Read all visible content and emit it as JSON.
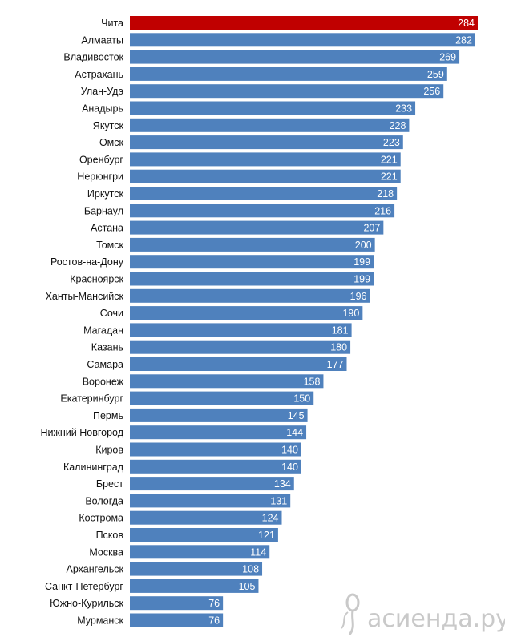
{
  "chart_data": {
    "type": "bar",
    "orientation": "horizontal",
    "title": "",
    "xlabel": "",
    "ylabel": "",
    "xlim": [
      0,
      300
    ],
    "grid": false,
    "legend": "none",
    "bar_color": "#4f81bd",
    "highlight_color": "#c00000",
    "highlight_index": 0,
    "categories": [
      "Чита",
      "Алмааты",
      "Владивосток",
      "Астрахань",
      "Улан-Удэ",
      "Анадырь",
      "Якутск",
      "Омск",
      "Оренбург",
      "Нерюнгри",
      "Иркутск",
      "Барнаул",
      "Астана",
      "Томск",
      "Ростов-на-Дону",
      "Красноярск",
      "Ханты-Мансийск",
      "Сочи",
      "Магадан",
      "Казань",
      "Самара",
      "Воронеж",
      "Екатеринбург",
      "Пермь",
      "Нижний Новгород",
      "Киров",
      "Калининград",
      "Брест",
      "Вологда",
      "Кострома",
      "Псков",
      "Москва",
      "Архангельск",
      "Санкт-Петербург",
      "Южно-Курильск",
      "Мурманск"
    ],
    "values": [
      284,
      282,
      269,
      259,
      256,
      233,
      228,
      223,
      221,
      221,
      218,
      216,
      207,
      200,
      199,
      199,
      196,
      190,
      181,
      180,
      177,
      158,
      150,
      145,
      144,
      140,
      140,
      134,
      131,
      124,
      121,
      114,
      108,
      105,
      76,
      76
    ]
  },
  "watermark": {
    "text": "асиенда.ру",
    "icon": "spoon-fork-icon"
  }
}
